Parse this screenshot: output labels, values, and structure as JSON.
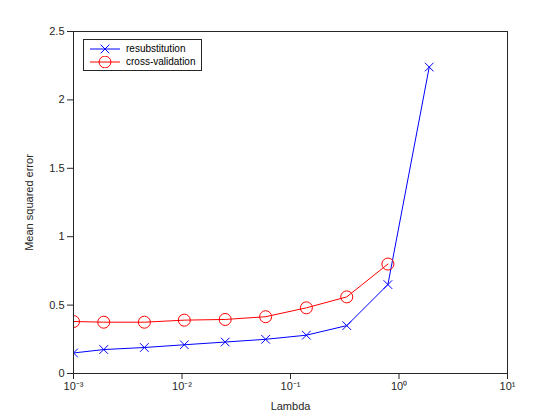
{
  "chart_data": {
    "type": "line",
    "x": [
      0.001,
      0.0019,
      0.0045,
      0.0105,
      0.025,
      0.059,
      0.14,
      0.33,
      0.79,
      1.9
    ],
    "series": [
      {
        "name": "resubstitution",
        "color": "#0000ff",
        "marker": "x",
        "line_style": "solid",
        "values": [
          0.15,
          0.175,
          0.19,
          0.21,
          0.23,
          0.25,
          0.28,
          0.35,
          0.65,
          2.24
        ]
      },
      {
        "name": "cross-validation",
        "color": "#ff0000",
        "marker": "circle",
        "line_style": "solid",
        "values": [
          0.38,
          0.375,
          0.375,
          0.39,
          0.395,
          0.415,
          0.48,
          0.56,
          0.8,
          null
        ]
      }
    ],
    "x_label": "Lambda",
    "y_label": "Mean squared error",
    "xlim": [
      0.001,
      10
    ],
    "xticks": [
      {
        "value": 0.001,
        "label": "10⁻³"
      },
      {
        "value": 0.01,
        "label": "10⁻²"
      },
      {
        "value": 0.1,
        "label": "10⁻¹"
      },
      {
        "value": 1,
        "label": "10⁰"
      },
      {
        "value": 10,
        "label": "10¹"
      }
    ],
    "ylim": [
      0,
      2.5
    ],
    "yticks": [
      0,
      0.5,
      1,
      1.5,
      2,
      2.5
    ],
    "log": "x",
    "grid": false,
    "legend": "upper left"
  }
}
